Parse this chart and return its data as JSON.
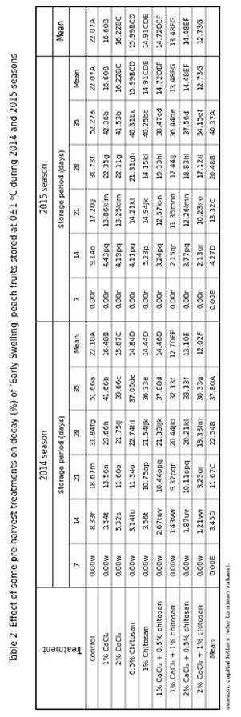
{
  "title": "Table 2: Effect of some pre-harvest treatments on decay (%) of ‘Early Swelling’ peach fruits stored at 0±1 ºC during 2014 and 2015 seasons",
  "footnote": "season, capital letters refer to mean values).",
  "treatments": [
    "Control",
    "1% CaCl₂",
    "2% CaCl₂",
    "0.5% Chitosan",
    "1% Chitosan",
    "1% CaCl₂ + 0.5% chitosan",
    "1% CaCl₂ + 1% chitosan",
    "2% CaCl₂ + 0.5% chitosan",
    "2% CaCl₂ + 1% chitosan",
    "Mean"
  ],
  "season2014": {
    "header": "2014 season",
    "subheader": "Storage period (days)",
    "days": [
      "7",
      "14",
      "21",
      "28",
      "35",
      "Mean"
    ],
    "data": [
      [
        "0.00w",
        "8.33r",
        "18.67m",
        "31.84fg",
        "51.66a",
        "22.10A"
      ],
      [
        "0.00w",
        "3.54t",
        "13.56n",
        "23.66h",
        "41.66b",
        "16.48B"
      ],
      [
        "0.00w",
        "5.32s",
        "11.60o",
        "21.75ij",
        "39.66c",
        "15.67C"
      ],
      [
        "0.00w",
        "3.14tu",
        "11.34o",
        "22.74hi",
        "37.00de",
        "14.84D"
      ],
      [
        "0.00w",
        "3.56t",
        "10.75op",
        "21.54ijk",
        "36.33e",
        "14.44D"
      ],
      [
        "0.00w",
        "2.67tuv",
        "10.44opq",
        "21.33ijk",
        "37.88d",
        "14.46D"
      ],
      [
        "0.00w",
        "1.43vw",
        "9.32pqr",
        "20.44jkl",
        "32.33f",
        "12.70EF"
      ],
      [
        "0.00w",
        "1.87uv",
        "10.11opq",
        "20.21kl",
        "33.33f",
        "13.10E"
      ],
      [
        "0.00w",
        "1.21vw",
        "9.23qr",
        "19.33lm",
        "30.33g",
        "12.02F"
      ],
      [
        "0.00E",
        "3.45D",
        "11.67C",
        "22.54B",
        "37.80A",
        ""
      ]
    ]
  },
  "season2015": {
    "header": "2015 season",
    "subheader": "Storage period (days)",
    "days": [
      "7",
      "14",
      "21",
      "28",
      "35",
      "Mean"
    ],
    "data": [
      [
        "0.00r",
        "9.14o",
        "17.20ij",
        "31.73f",
        "52.27a",
        "22.07A"
      ],
      [
        "0.00r",
        "4.43pq",
        "13.86klm",
        "22.35g",
        "42.36b",
        "16.60B"
      ],
      [
        "0.00r",
        "4.19pq",
        "13.25klm",
        "22.11g",
        "41.53b",
        "16.22BC"
      ],
      [
        "0.00r",
        "4.11pq",
        "14.21kl",
        "21.31gh",
        "40.31bc",
        "15.99BCD"
      ],
      [
        "0.00r",
        "5.23p",
        "14.94jk",
        "14.15kl",
        "40.25bc",
        "14.91CDE"
      ],
      [
        "0.00r",
        "3.24pq",
        "12.57k-n",
        "19.33hi",
        "38.47cd",
        "14.72DEF"
      ],
      [
        "0.00r",
        "2.15qr",
        "11.35mno",
        "17.44ij",
        "36.44de",
        "13.48FG"
      ],
      [
        "0.00r",
        "3.77pq",
        "12.26lmn",
        "18.83hi",
        "37.56d",
        "14.48EF"
      ],
      [
        "0.00r",
        "2.13qr",
        "10.23no",
        "17.12ij",
        "34.15ef",
        "12.73G"
      ],
      [
        "0.00E",
        "4.27D",
        "13.32C",
        "20.48B",
        "40.37A",
        ""
      ]
    ]
  },
  "overall_mean": [
    "22.07A",
    "16.60B",
    "16.22BC",
    "15.99BCD",
    "14.91CDE",
    "14.72DEF",
    "13.48FG",
    "14.48EF",
    "12.73G",
    ""
  ]
}
